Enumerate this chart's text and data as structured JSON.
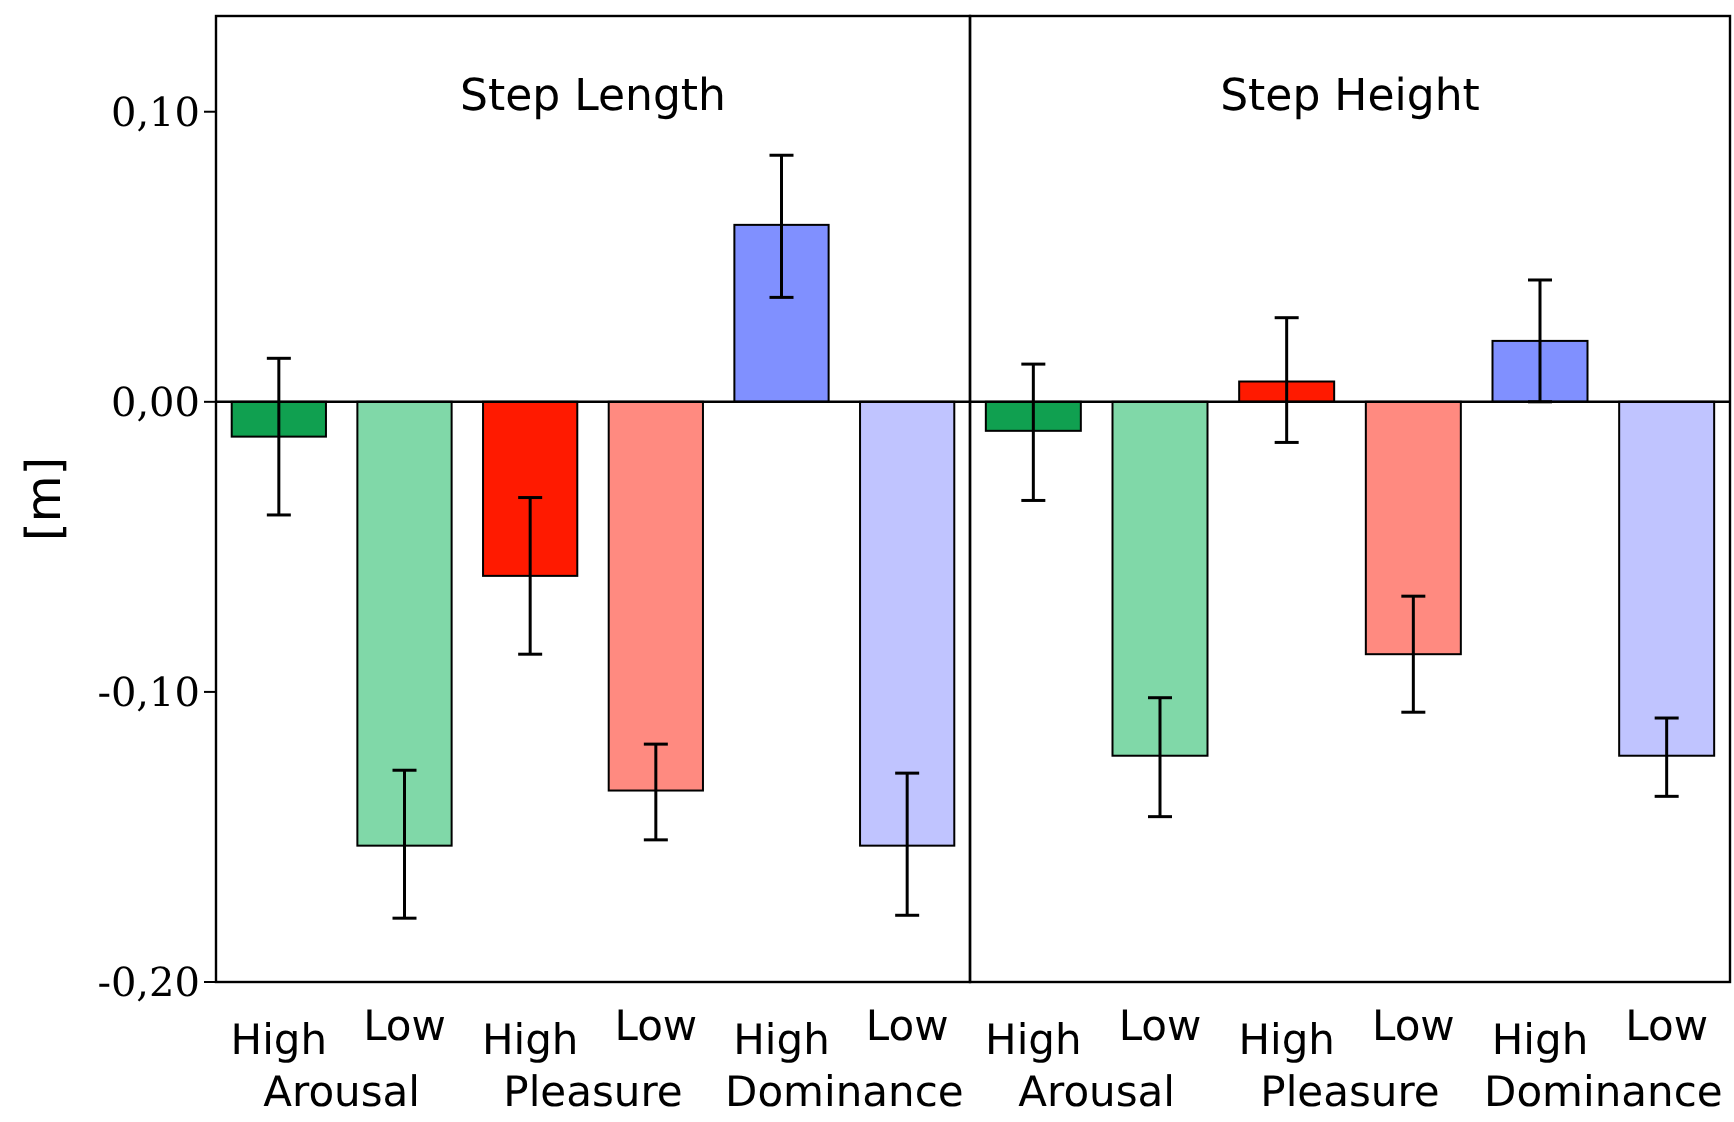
{
  "chart_data": [
    {
      "type": "bar",
      "title": "Step Length",
      "ylabel": "[m]",
      "categories": [
        "High",
        "Low",
        "High",
        "Low",
        "High",
        "Low"
      ],
      "values": [
        -0.012,
        -0.153,
        -0.06,
        -0.134,
        0.061,
        -0.153
      ],
      "errors": [
        [
          -0.039,
          0.015
        ],
        [
          -0.178,
          -0.127
        ],
        [
          -0.087,
          -0.033
        ],
        [
          -0.151,
          -0.118
        ],
        [
          0.036,
          0.085
        ],
        [
          -0.177,
          -0.128
        ]
      ],
      "colors": [
        "#10a050",
        "#80d8a8",
        "#ff1a00",
        "#ff8a80",
        "#8090ff",
        "#c0c4ff"
      ],
      "annotations": [
        "Arousal",
        "Pleasure",
        "Dominance"
      ],
      "ylim": [
        -0.2,
        0.133
      ],
      "yticks": [
        {
          "value": 0.1,
          "label": "0,10"
        },
        {
          "value": 0,
          "label": "0,00"
        },
        {
          "value": -0.1,
          "label": "-0,10"
        },
        {
          "value": -0.2,
          "label": "-0,20"
        }
      ]
    },
    {
      "type": "bar",
      "title": "Step Height",
      "categories": [
        "High",
        "Low",
        "High",
        "Low",
        "High",
        "Low"
      ],
      "values": [
        -0.01,
        -0.122,
        0.007,
        -0.087,
        0.021,
        -0.122
      ],
      "errors": [
        [
          -0.034,
          0.013
        ],
        [
          -0.143,
          -0.102
        ],
        [
          -0.014,
          0.029
        ],
        [
          -0.107,
          -0.067
        ],
        [
          0.0,
          0.042
        ],
        [
          -0.136,
          -0.109
        ]
      ],
      "colors": [
        "#10a050",
        "#80d8a8",
        "#ff1a00",
        "#ff8a80",
        "#8090ff",
        "#c0c4ff"
      ],
      "annotations": [
        "Arousal",
        "Pleasure",
        "Dominance"
      ],
      "ylim": [
        -0.2,
        0.133
      ],
      "tick_labels": "x"
    }
  ]
}
